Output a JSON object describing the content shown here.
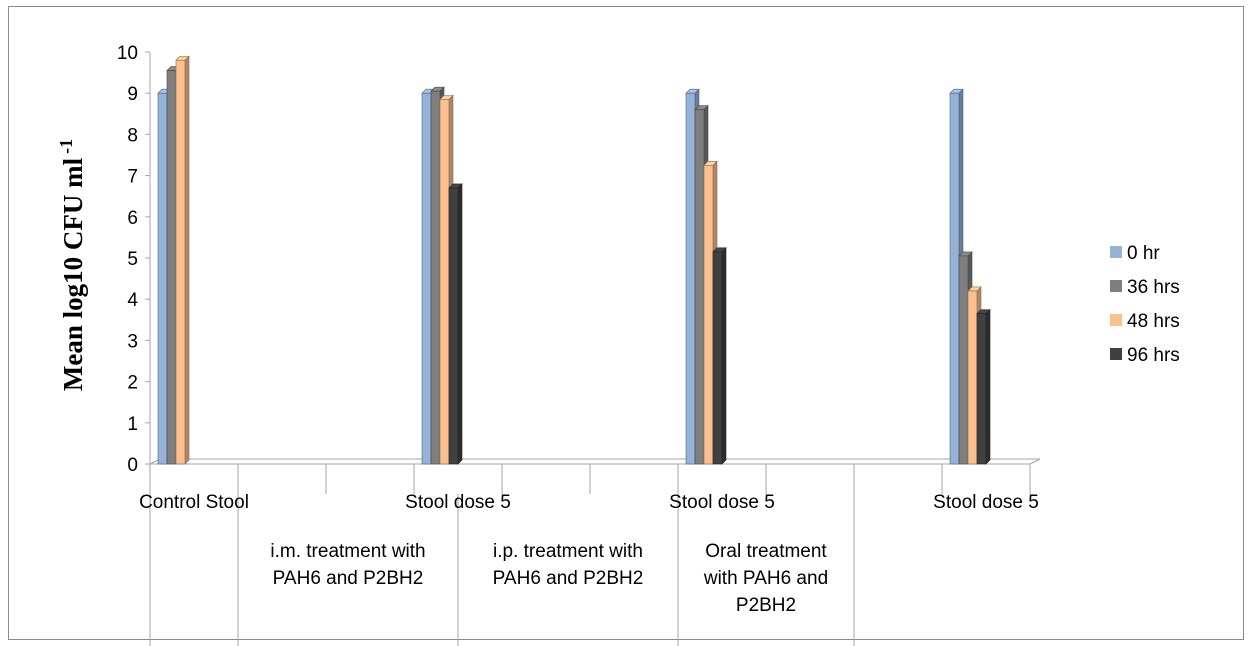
{
  "chart_data": {
    "type": "bar",
    "style": "3d-clustered-column",
    "ylabel": "Mean log10 CFU ml",
    "ylabel_superscript": "-1",
    "xlabel": "",
    "ylim": [
      0,
      10
    ],
    "ytick_step": 1,
    "grid": false,
    "legend_position": "right",
    "categories": [
      "Control Stool",
      "",
      "",
      "Stool dose 5",
      "",
      "",
      "Stool dose 5",
      "",
      "",
      "Stool dose 5"
    ],
    "groups": [
      {
        "label_lines": [],
        "span": 2
      },
      {
        "label_lines": [
          "i.m. treatment with",
          "PAH6 and P2BH2"
        ],
        "span": 5
      },
      {
        "label_lines": [
          "i.p. treatment with",
          "PAH6 and P2BH2"
        ],
        "span": 5
      },
      {
        "label_lines": [
          "Oral treatment",
          "with PAH6 and",
          "P2BH2"
        ],
        "span": 4
      }
    ],
    "series": [
      {
        "name": "0 hr",
        "color": "#95b3d7",
        "values": [
          9.0,
          null,
          null,
          9.0,
          null,
          null,
          9.0,
          null,
          null,
          9.0
        ]
      },
      {
        "name": "36 hrs",
        "color": "#7f7f7f",
        "values": [
          9.55,
          null,
          null,
          9.05,
          null,
          null,
          8.6,
          null,
          null,
          5.05
        ]
      },
      {
        "name": "48 hrs",
        "color": "#fac090",
        "values": [
          9.8,
          null,
          null,
          8.85,
          null,
          null,
          7.25,
          null,
          null,
          4.2
        ]
      },
      {
        "name": "96 hrs",
        "color": "#404040",
        "values": [
          null,
          null,
          null,
          6.7,
          null,
          null,
          5.15,
          null,
          null,
          3.65
        ]
      }
    ]
  }
}
